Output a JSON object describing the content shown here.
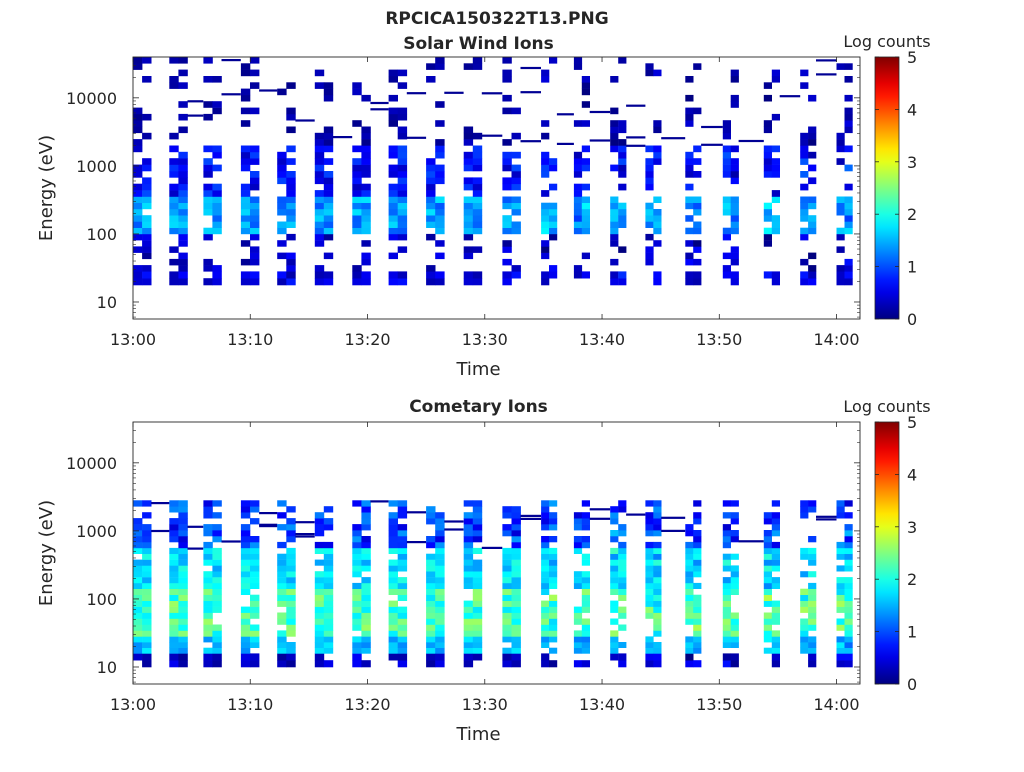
{
  "figure": {
    "title": "RPCICA150322T13.PNG"
  },
  "chart_data": [
    {
      "type": "heatmap",
      "title": "Solar Wind Ions",
      "title_weight": "normal",
      "xlabel": "Time",
      "ylabel": "Energy (eV)",
      "x_ticks": [
        "13:00",
        "13:10",
        "13:20",
        "13:30",
        "13:40",
        "13:50",
        "14:00"
      ],
      "x_range_minutes": [
        0,
        62
      ],
      "y_ticks": [
        "10",
        "100",
        "1000",
        "10000"
      ],
      "y_scale": "log",
      "y_range_log10": [
        0.75,
        4.6
      ],
      "colorbar": {
        "label": "Log counts",
        "ticks": [
          "0",
          "1",
          "2",
          "3",
          "4",
          "5"
        ],
        "range": [
          0,
          5
        ],
        "colormap": "jet"
      },
      "seed": 11,
      "column_starts_minutes": [
        0,
        3.1,
        6.0,
        9.2,
        12.3,
        15.5,
        18.7,
        21.8,
        25.0,
        28.2,
        31.5,
        34.8,
        37.6,
        40.7,
        43.7,
        47.1,
        50.3,
        53.8,
        56.9,
        60.0
      ],
      "bands": [
        {
          "elow": 1.25,
          "ehigh": 1.45,
          "lo": 0.2,
          "hi": 0.75,
          "density": 0.97
        },
        {
          "elow": 1.45,
          "ehigh": 2.0,
          "lo": 0.1,
          "hi": 0.6,
          "density": 0.45
        },
        {
          "elow": 2.0,
          "ehigh": 2.55,
          "lo": 1.05,
          "hi": 1.75,
          "density": 0.95
        },
        {
          "elow": 2.55,
          "ehigh": 3.3,
          "lo": 0.3,
          "hi": 1.0,
          "density": 0.72
        },
        {
          "elow": 3.3,
          "ehigh": 4.6,
          "lo": 0.05,
          "hi": 0.35,
          "density": 0.32
        }
      ]
    },
    {
      "type": "heatmap",
      "title": "Cometary Ions",
      "title_weight": "bold",
      "xlabel": "Time",
      "ylabel": "Energy (eV)",
      "x_ticks": [
        "13:00",
        "13:10",
        "13:20",
        "13:30",
        "13:40",
        "13:50",
        "14:00"
      ],
      "x_range_minutes": [
        0,
        62
      ],
      "y_ticks": [
        "10",
        "100",
        "1000",
        "10000"
      ],
      "y_scale": "log",
      "y_range_log10": [
        0.75,
        4.6
      ],
      "colorbar": {
        "label": "Log counts",
        "ticks": [
          "0",
          "1",
          "2",
          "3",
          "4",
          "5"
        ],
        "range": [
          0,
          5
        ],
        "colormap": "jet"
      },
      "seed": 29,
      "column_starts_minutes": [
        0,
        3.1,
        6.0,
        9.2,
        12.3,
        15.5,
        18.7,
        21.8,
        25.0,
        28.2,
        31.5,
        34.8,
        37.6,
        40.7,
        43.7,
        47.1,
        50.3,
        53.8,
        56.9,
        60.0
      ],
      "bands": [
        {
          "elow": 1.0,
          "ehigh": 1.2,
          "lo": 0.1,
          "hi": 0.6,
          "density": 0.9
        },
        {
          "elow": 1.2,
          "ehigh": 1.45,
          "lo": 1.25,
          "hi": 1.8,
          "density": 0.95
        },
        {
          "elow": 1.45,
          "ehigh": 2.15,
          "lo": 1.75,
          "hi": 2.65,
          "density": 0.95
        },
        {
          "elow": 2.15,
          "ehigh": 2.75,
          "lo": 1.4,
          "hi": 2.05,
          "density": 0.92
        },
        {
          "elow": 2.75,
          "ehigh": 3.45,
          "lo": 0.4,
          "hi": 1.4,
          "density": 0.8
        }
      ]
    }
  ]
}
